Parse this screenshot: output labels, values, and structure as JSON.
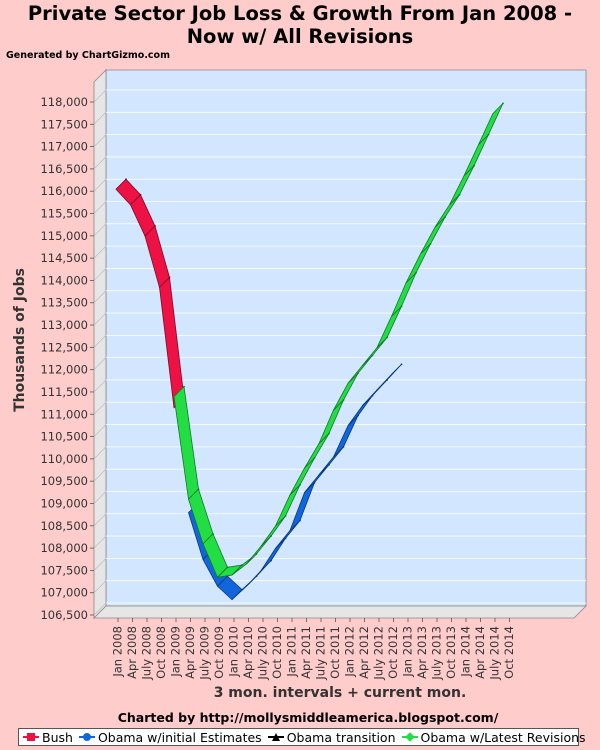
{
  "title_lines": [
    "Private Sector Job Loss & Growth From Jan 2008 -",
    "Now w/ All Revisions"
  ],
  "generated_by": "Generated by ChartGizmo.com",
  "credit": "Charted by http://mollysmiddleamerica.blogspot.com/",
  "colors": {
    "background": "#ffcccc",
    "plot_back": "#d2e6ff",
    "wall": "#e6e6e6",
    "bush": "#ee1144",
    "initial": "#1166dd",
    "transition": "#000000",
    "latest": "#22dd44"
  },
  "chart_data": {
    "type": "line",
    "title": "Private Sector Job Loss & Growth From Jan 2008 - Now w/ All Revisions",
    "xlabel": "3 mon. intervals + current mon.",
    "ylabel": "Thousands of Jobs",
    "ylim": [
      106500,
      118000
    ],
    "y_ticks": [
      106500,
      107000,
      107500,
      108000,
      108500,
      109000,
      109500,
      110000,
      110500,
      111000,
      111500,
      112000,
      112500,
      113000,
      113500,
      114000,
      114500,
      115000,
      115500,
      116000,
      116500,
      117000,
      117500,
      118000
    ],
    "y_tick_labels": [
      "106,500",
      "107,000",
      "107,500",
      "108,000",
      "108,500",
      "109,000",
      "109,500",
      "110,000",
      "110,500",
      "111,000",
      "111,500",
      "112,000",
      "112,500",
      "113,000",
      "113,500",
      "114,000",
      "114,500",
      "115,000",
      "115,500",
      "116,000",
      "116,500",
      "117,000",
      "117,500",
      "118,000"
    ],
    "categories": [
      "Jan 2008",
      "Apr 2008",
      "July 2008",
      "Oct 2008",
      "Jan 2009",
      "Apr 2009",
      "July 2009",
      "Oct 2009",
      "Jan 2010",
      "Apr 2010",
      "July 2010",
      "Oct 2010",
      "Jan 2011",
      "Apr 2011",
      "July 2011",
      "Oct 2011",
      "Jan 2012",
      "Apr 2012",
      "July 2012",
      "Oct 2012",
      "Jan 2013",
      "Apr 2013",
      "July 2013",
      "Oct 2013",
      "Jan 2014",
      "Apr 2014",
      "July 2014",
      "Oct 2014"
    ],
    "grid": true,
    "legend_position": "bottom",
    "series": [
      {
        "name": "Bush",
        "color": "#ee1144",
        "marker": "square",
        "values": [
          116000,
          115650,
          114950,
          113800,
          111100,
          null,
          null,
          null,
          null,
          null,
          null,
          null,
          null,
          null,
          null,
          null,
          null,
          null,
          null,
          null,
          null,
          null,
          null,
          null,
          null,
          null,
          null,
          null
        ]
      },
      {
        "name": "Obama w/initial Estimates",
        "color": "#1166dd",
        "marker": "circle",
        "values": [
          null,
          null,
          null,
          null,
          null,
          108750,
          107700,
          107100,
          106800,
          107100,
          107450,
          107950,
          108350,
          109200,
          109600,
          110000,
          110700,
          111150,
          111500,
          111850,
          null,
          null,
          null,
          null,
          null,
          null,
          null,
          null
        ]
      },
      {
        "name": "Obama transition",
        "color": "#000000",
        "marker": "triangle",
        "values": [
          null,
          null,
          null,
          null,
          111000,
          108800,
          null,
          null,
          null,
          null,
          null,
          null,
          null,
          null,
          null,
          null,
          null,
          null,
          null,
          null,
          null,
          null,
          null,
          null,
          null,
          null,
          null,
          null
        ]
      },
      {
        "name": "Obama w/Latest Revisions",
        "color": "#22dd44",
        "marker": "diamond",
        "values": [
          null,
          null,
          null,
          null,
          111350,
          109050,
          108050,
          107300,
          107350,
          107600,
          108000,
          108450,
          109150,
          109750,
          110300,
          111050,
          111650,
          112050,
          112450,
          113150,
          113900,
          114550,
          115150,
          115650,
          116300,
          117000,
          117700,
          null
        ]
      }
    ]
  }
}
